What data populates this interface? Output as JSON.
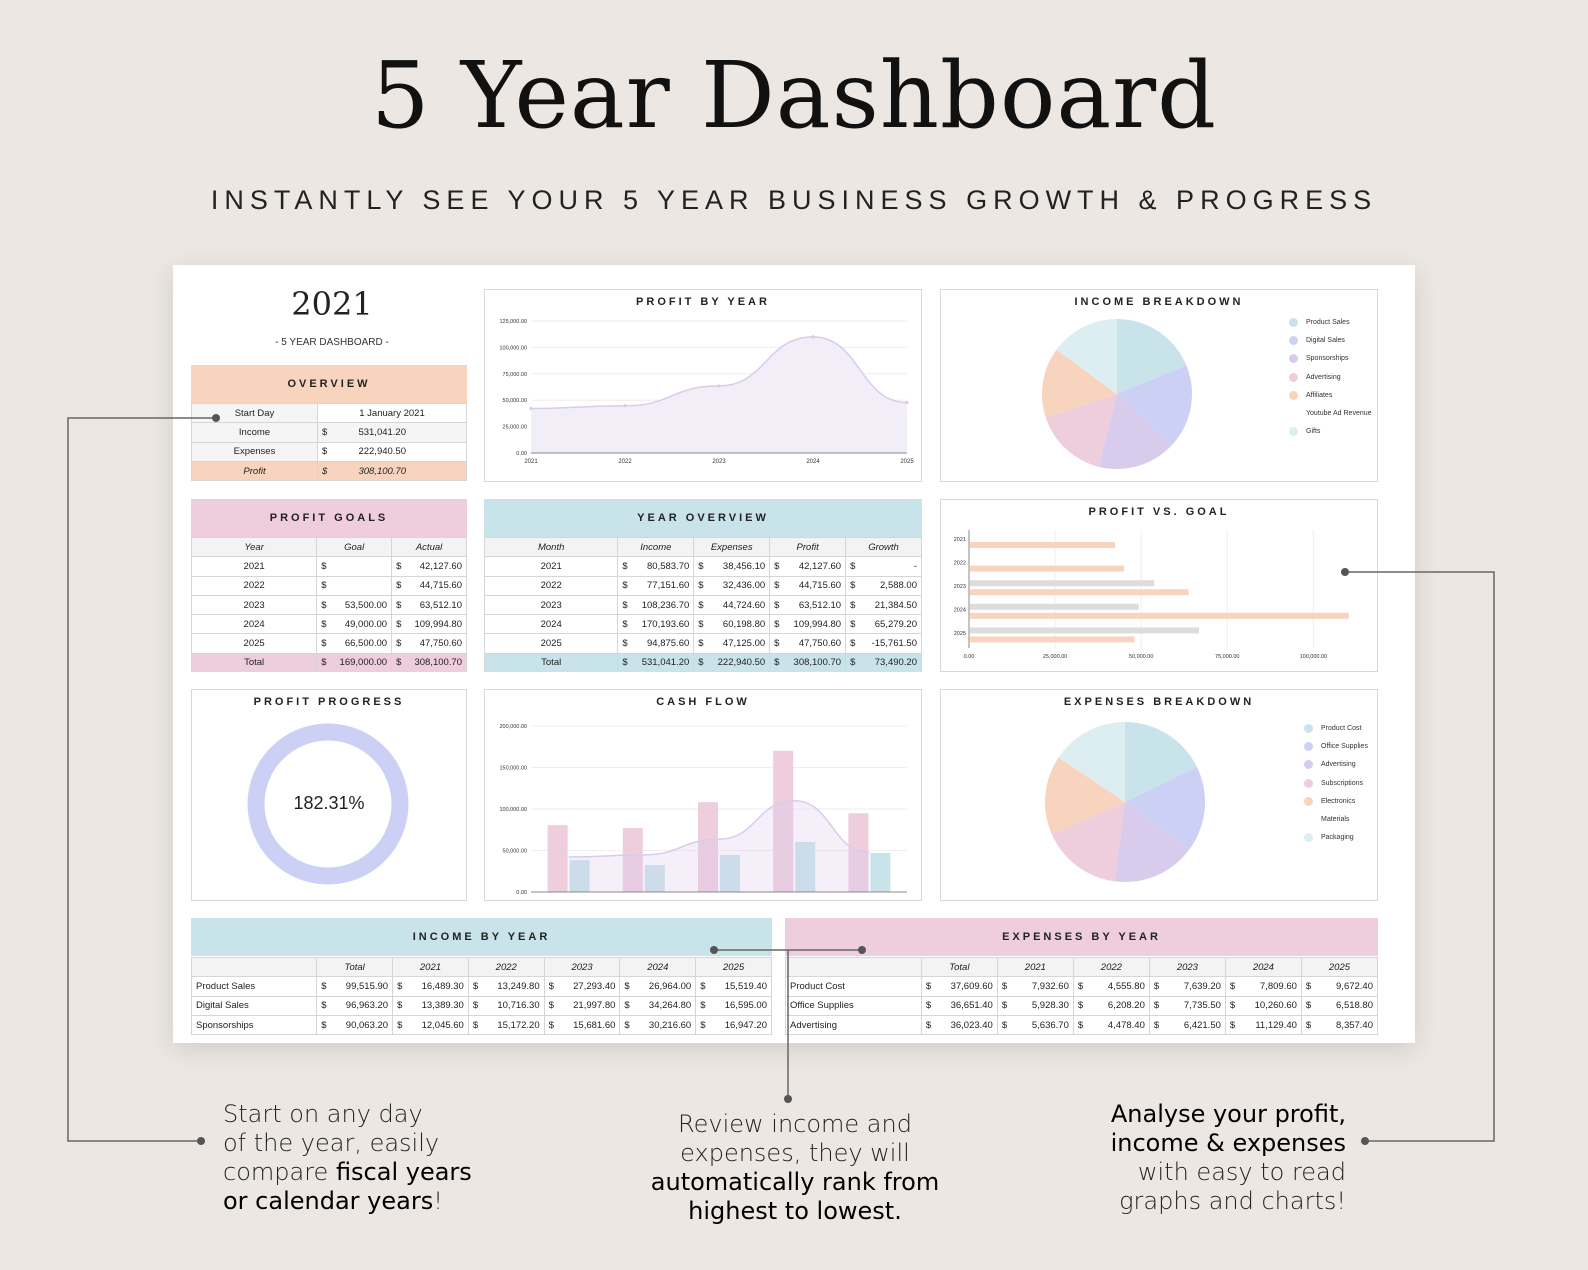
{
  "header": {
    "title": "5 Year Dashboard",
    "subtitle": "INSTANTLY SEE YOUR 5 YEAR BUSINESS GROWTH & PROGRESS"
  },
  "colors": {
    "peach": "#f8d4bf",
    "pink": "#eecddd",
    "lightblue": "#c8e4ea",
    "lavender": "#cdd0f5",
    "purple": "#d9cbeb"
  },
  "dashboard": {
    "year": "2021",
    "year_subtitle": "- 5 YEAR DASHBOARD -"
  },
  "overview": {
    "title": "OVERVIEW",
    "rows": [
      {
        "label": "Start Day",
        "value": "1 January 2021",
        "money": false
      },
      {
        "label": "Income",
        "value": "531,041.20",
        "money": true
      },
      {
        "label": "Expenses",
        "value": "222,940.50",
        "money": true
      },
      {
        "label": "Profit",
        "value": "308,100.70",
        "money": true
      }
    ]
  },
  "profit_goals": {
    "title": "PROFIT GOALS",
    "headers": [
      "Year",
      "Goal",
      "Actual"
    ],
    "rows": [
      [
        "2021",
        "",
        "42,127.60"
      ],
      [
        "2022",
        "",
        "44,715.60"
      ],
      [
        "2023",
        "53,500.00",
        "63,512.10"
      ],
      [
        "2024",
        "49,000.00",
        "109,994.80"
      ],
      [
        "2025",
        "66,500.00",
        "47,750.60"
      ]
    ],
    "total": [
      "Total",
      "169,000.00",
      "308,100.70"
    ]
  },
  "year_overview": {
    "title": "YEAR OVERVIEW",
    "headers": [
      "Month",
      "Income",
      "Expenses",
      "Profit",
      "Growth"
    ],
    "rows": [
      [
        "2021",
        "80,583.70",
        "38,456.10",
        "42,127.60",
        "-"
      ],
      [
        "2022",
        "77,151.60",
        "32,436.00",
        "44,715.60",
        "2,588.00"
      ],
      [
        "2023",
        "108,236.70",
        "44,724.60",
        "63,512.10",
        "21,384.50"
      ],
      [
        "2024",
        "170,193.60",
        "60,198.80",
        "109,994.80",
        "65,279.20"
      ],
      [
        "2025",
        "94,875.60",
        "47,125.00",
        "47,750.60",
        "-15,761.50"
      ]
    ],
    "total": [
      "Total",
      "531,041.20",
      "222,940.50",
      "308,100.70",
      "73,490.20"
    ]
  },
  "profit_progress": {
    "title": "PROFIT PROGRESS",
    "value": "182.31%"
  },
  "income_by_year": {
    "title": "INCOME BY YEAR",
    "headers": [
      "",
      "Total",
      "2021",
      "2022",
      "2023",
      "2024",
      "2025"
    ],
    "rows": [
      [
        "Product Sales",
        "99,515.90",
        "16,489.30",
        "13,249.80",
        "27,293.40",
        "26,964.00",
        "15,519.40"
      ],
      [
        "Digital Sales",
        "96,963.20",
        "13,389.30",
        "10,716.30",
        "21,997.80",
        "34,264.80",
        "16,595.00"
      ],
      [
        "Sponsorships",
        "90,063.20",
        "12,045.60",
        "15,172.20",
        "15,681.60",
        "30,216.60",
        "16,947.20"
      ]
    ]
  },
  "expenses_by_year": {
    "title": "EXPENSES BY YEAR",
    "headers": [
      "",
      "Total",
      "2021",
      "2022",
      "2023",
      "2024",
      "2025"
    ],
    "rows": [
      [
        "Product Cost",
        "37,609.60",
        "7,932.60",
        "4,555.80",
        "7,639.20",
        "7,809.60",
        "9,672.40"
      ],
      [
        "Office Supplies",
        "36,651.40",
        "5,928.30",
        "6,208.20",
        "7,735.50",
        "10,260.60",
        "6,518.80"
      ],
      [
        "Advertising",
        "36,023.40",
        "5,636.70",
        "4,478.40",
        "6,421.50",
        "11,129.40",
        "8,357.40"
      ]
    ]
  },
  "captions": {
    "left": [
      {
        "text": "Start on any day",
        "bold": false
      },
      {
        "text": "of the year, easily",
        "bold": false
      },
      {
        "text": "compare ",
        "bold": false,
        "bold_tail": "fiscal years"
      },
      {
        "text": "or calendar years",
        "bold": true,
        "tail": "!"
      }
    ],
    "center": [
      {
        "text": "Review income and",
        "bold": false
      },
      {
        "text": "expenses, they will",
        "bold": false
      },
      {
        "text": "automatically rank from",
        "bold": true
      },
      {
        "text": "highest to lowest.",
        "bold": true
      }
    ],
    "right": [
      {
        "text": "Analyse your profit,",
        "bold": true
      },
      {
        "text": "income & expenses",
        "bold": true
      },
      {
        "text": "with easy to read",
        "bold": false
      },
      {
        "text": "graphs and charts!",
        "bold": false
      }
    ]
  },
  "chart_data": [
    {
      "type": "area",
      "title": "PROFIT BY YEAR",
      "x": [
        "2021",
        "2022",
        "2023",
        "2024",
        "2025"
      ],
      "y_ticks": [
        "0.00",
        "25,000.00",
        "50,000.00",
        "75,000.00",
        "100,000.00",
        "125,000.00"
      ],
      "ylim": [
        0,
        125000
      ],
      "values": [
        42127.6,
        44715.6,
        63512.1,
        109994.8,
        47750.6
      ],
      "color": "#d9cbeb"
    },
    {
      "type": "pie",
      "title": "INCOME BREAKDOWN",
      "labels": [
        "Product Sales",
        "Digital Sales",
        "Sponsorships",
        "Advertising",
        "Affiliates",
        "Youtube Ad Revenue",
        "Gifts"
      ],
      "values": [
        99515.9,
        96963.2,
        90063.2,
        85000,
        80000,
        0,
        79500
      ],
      "colors": [
        "#c8e4ea",
        "#cdd0f5",
        "#d9cbeb",
        "#eecddd",
        "#f8d4bf",
        "#ffffff",
        "#ddeef2"
      ],
      "legend": "right"
    },
    {
      "type": "bar",
      "orientation": "horizontal",
      "title": "PROFIT VS. GOAL",
      "categories": [
        "2021",
        "2022",
        "2023",
        "2024",
        "2025"
      ],
      "x_ticks": [
        "0.00",
        "25,000.00",
        "50,000.00",
        "75,000.00",
        "100,000.00"
      ],
      "xlim": [
        0,
        115000
      ],
      "series": [
        {
          "values": [
            0,
            0,
            53500,
            49000,
            66500
          ],
          "color": "#dcdcdc"
        },
        {
          "values": [
            42127.6,
            44715.6,
            63512.1,
            109994.8,
            47750.6
          ],
          "color": "#f8d4bf"
        }
      ]
    },
    {
      "type": "bar",
      "title": "CASH FLOW",
      "categories": [
        "2021",
        "2022",
        "2023",
        "2024",
        "2025"
      ],
      "y_ticks": [
        "0.00",
        "50,000.00",
        "100,000.00",
        "150,000.00",
        "200,000.00"
      ],
      "ylim": [
        0,
        200000
      ],
      "series": [
        {
          "values": [
            80583.7,
            77151.6,
            108236.7,
            170193.6,
            94875.6
          ],
          "color": "#eecddd"
        },
        {
          "values": [
            38456.1,
            32436.0,
            44724.6,
            60198.8,
            47125.0
          ],
          "color": "#c8e4ea"
        }
      ],
      "line": {
        "values": [
          42127.6,
          44715.6,
          63512.1,
          109994.8,
          47750.6
        ],
        "color": "#d9cbeb"
      }
    },
    {
      "type": "pie",
      "title": "EXPENSES BREAKDOWN",
      "labels": [
        "Product Cost",
        "Office Supplies",
        "Advertising",
        "Subscriptions",
        "Electronics",
        "Materials",
        "Packaging"
      ],
      "values": [
        37609.6,
        36651.4,
        36023.4,
        34500,
        33800,
        0,
        33000
      ],
      "colors": [
        "#c8e4ea",
        "#cdd0f5",
        "#d9cbeb",
        "#eecddd",
        "#f8d4bf",
        "#ffffff",
        "#ddeef2"
      ],
      "legend": "right"
    }
  ]
}
